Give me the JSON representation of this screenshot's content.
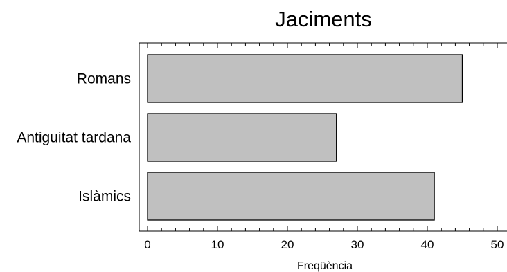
{
  "chart_data": {
    "type": "bar",
    "orientation": "horizontal",
    "title": "Jaciments",
    "xlabel": "Freqüència",
    "ylabel": "",
    "categories": [
      "Romans",
      "Antiguitat tardana",
      "Islàmics"
    ],
    "values": [
      45,
      27,
      41
    ],
    "xlim": [
      0,
      50
    ],
    "x_ticks": [
      0,
      10,
      20,
      30,
      40,
      50
    ],
    "x_minor_step": 2,
    "grid": false,
    "legend": "none",
    "bar_color": "#c0c0c0",
    "bar_edge_color": "#000000"
  }
}
